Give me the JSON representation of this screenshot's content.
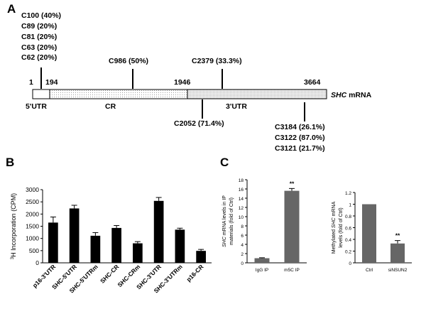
{
  "panel_labels": [
    "A",
    "B",
    "C"
  ],
  "diagram": {
    "positions": {
      "start": "1",
      "utr5_end": "194",
      "cr_end": "1946",
      "end": "3664"
    },
    "gene_name": "SHC",
    "gene_suffix": " mRNA",
    "regions": {
      "utr5": "5'UTR",
      "cr": "CR",
      "utr3": "3'UTR"
    },
    "sites_group1": [
      "C100 (40%)",
      "C89 (20%)",
      "C81 (20%)",
      "C63 (20%)",
      "C62 (20%)"
    ],
    "site_c986": "C986 (50%)",
    "site_c2379": "C2379 (33.3%)",
    "site_c2052": "C2052 (71.4%)",
    "sites_group2": [
      "C3184 (26.1%)",
      "C3122 (87.0%)",
      "C3121 (21.7%)"
    ]
  },
  "chart_data": [
    {
      "panel": "B",
      "type": "bar",
      "title": "",
      "xlabel": "",
      "ylabel_sup": "3",
      "ylabel": "H Incorporation (CPM)",
      "categories": [
        "p16-3'UTR",
        "SHC-5'UTR",
        "SHC-5'UTRm",
        "SHC-CR",
        "SHC-CRm",
        "SHC-3'UTR",
        "SHC-3'UTRm",
        "p16-CR"
      ],
      "values": [
        1650,
        2230,
        1110,
        1430,
        800,
        2540,
        1360,
        490
      ],
      "errors": [
        230,
        130,
        130,
        100,
        70,
        140,
        60,
        60
      ],
      "ylim": [
        0,
        3000
      ],
      "yticks": [
        "0",
        "500",
        "1000",
        "1500",
        "2000",
        "2500",
        "3000"
      ],
      "bar_color": "#000000"
    },
    {
      "panel": "C-left",
      "type": "bar",
      "ylabel_lines": [
        "SHC mRNA levels in IP",
        "materials (fold of Ctrl)"
      ],
      "categories": [
        "IgG IP",
        "m5C IP"
      ],
      "values": [
        1.0,
        15.6
      ],
      "errors": [
        0.1,
        0.5
      ],
      "significance": [
        "",
        "**"
      ],
      "ylim": [
        0,
        18
      ],
      "yticks": [
        "0",
        "2",
        "4",
        "6",
        "8",
        "10",
        "12",
        "14",
        "16",
        "18"
      ],
      "bar_color": "#666666"
    },
    {
      "panel": "C-right",
      "type": "bar",
      "ylabel_lines": [
        "Methylated SHC mRNA",
        "levels (fold of Ctrl)"
      ],
      "categories": [
        "Ctrl",
        "siNSUN2"
      ],
      "values": [
        1.0,
        0.33
      ],
      "errors": [
        0.0,
        0.05
      ],
      "significance": [
        "",
        "**"
      ],
      "ylim": [
        0,
        1.2
      ],
      "yticks": [
        "0",
        "0.2",
        "0.4",
        "0.6",
        "0.8",
        "1",
        "1.2"
      ],
      "bar_color": "#666666"
    }
  ]
}
